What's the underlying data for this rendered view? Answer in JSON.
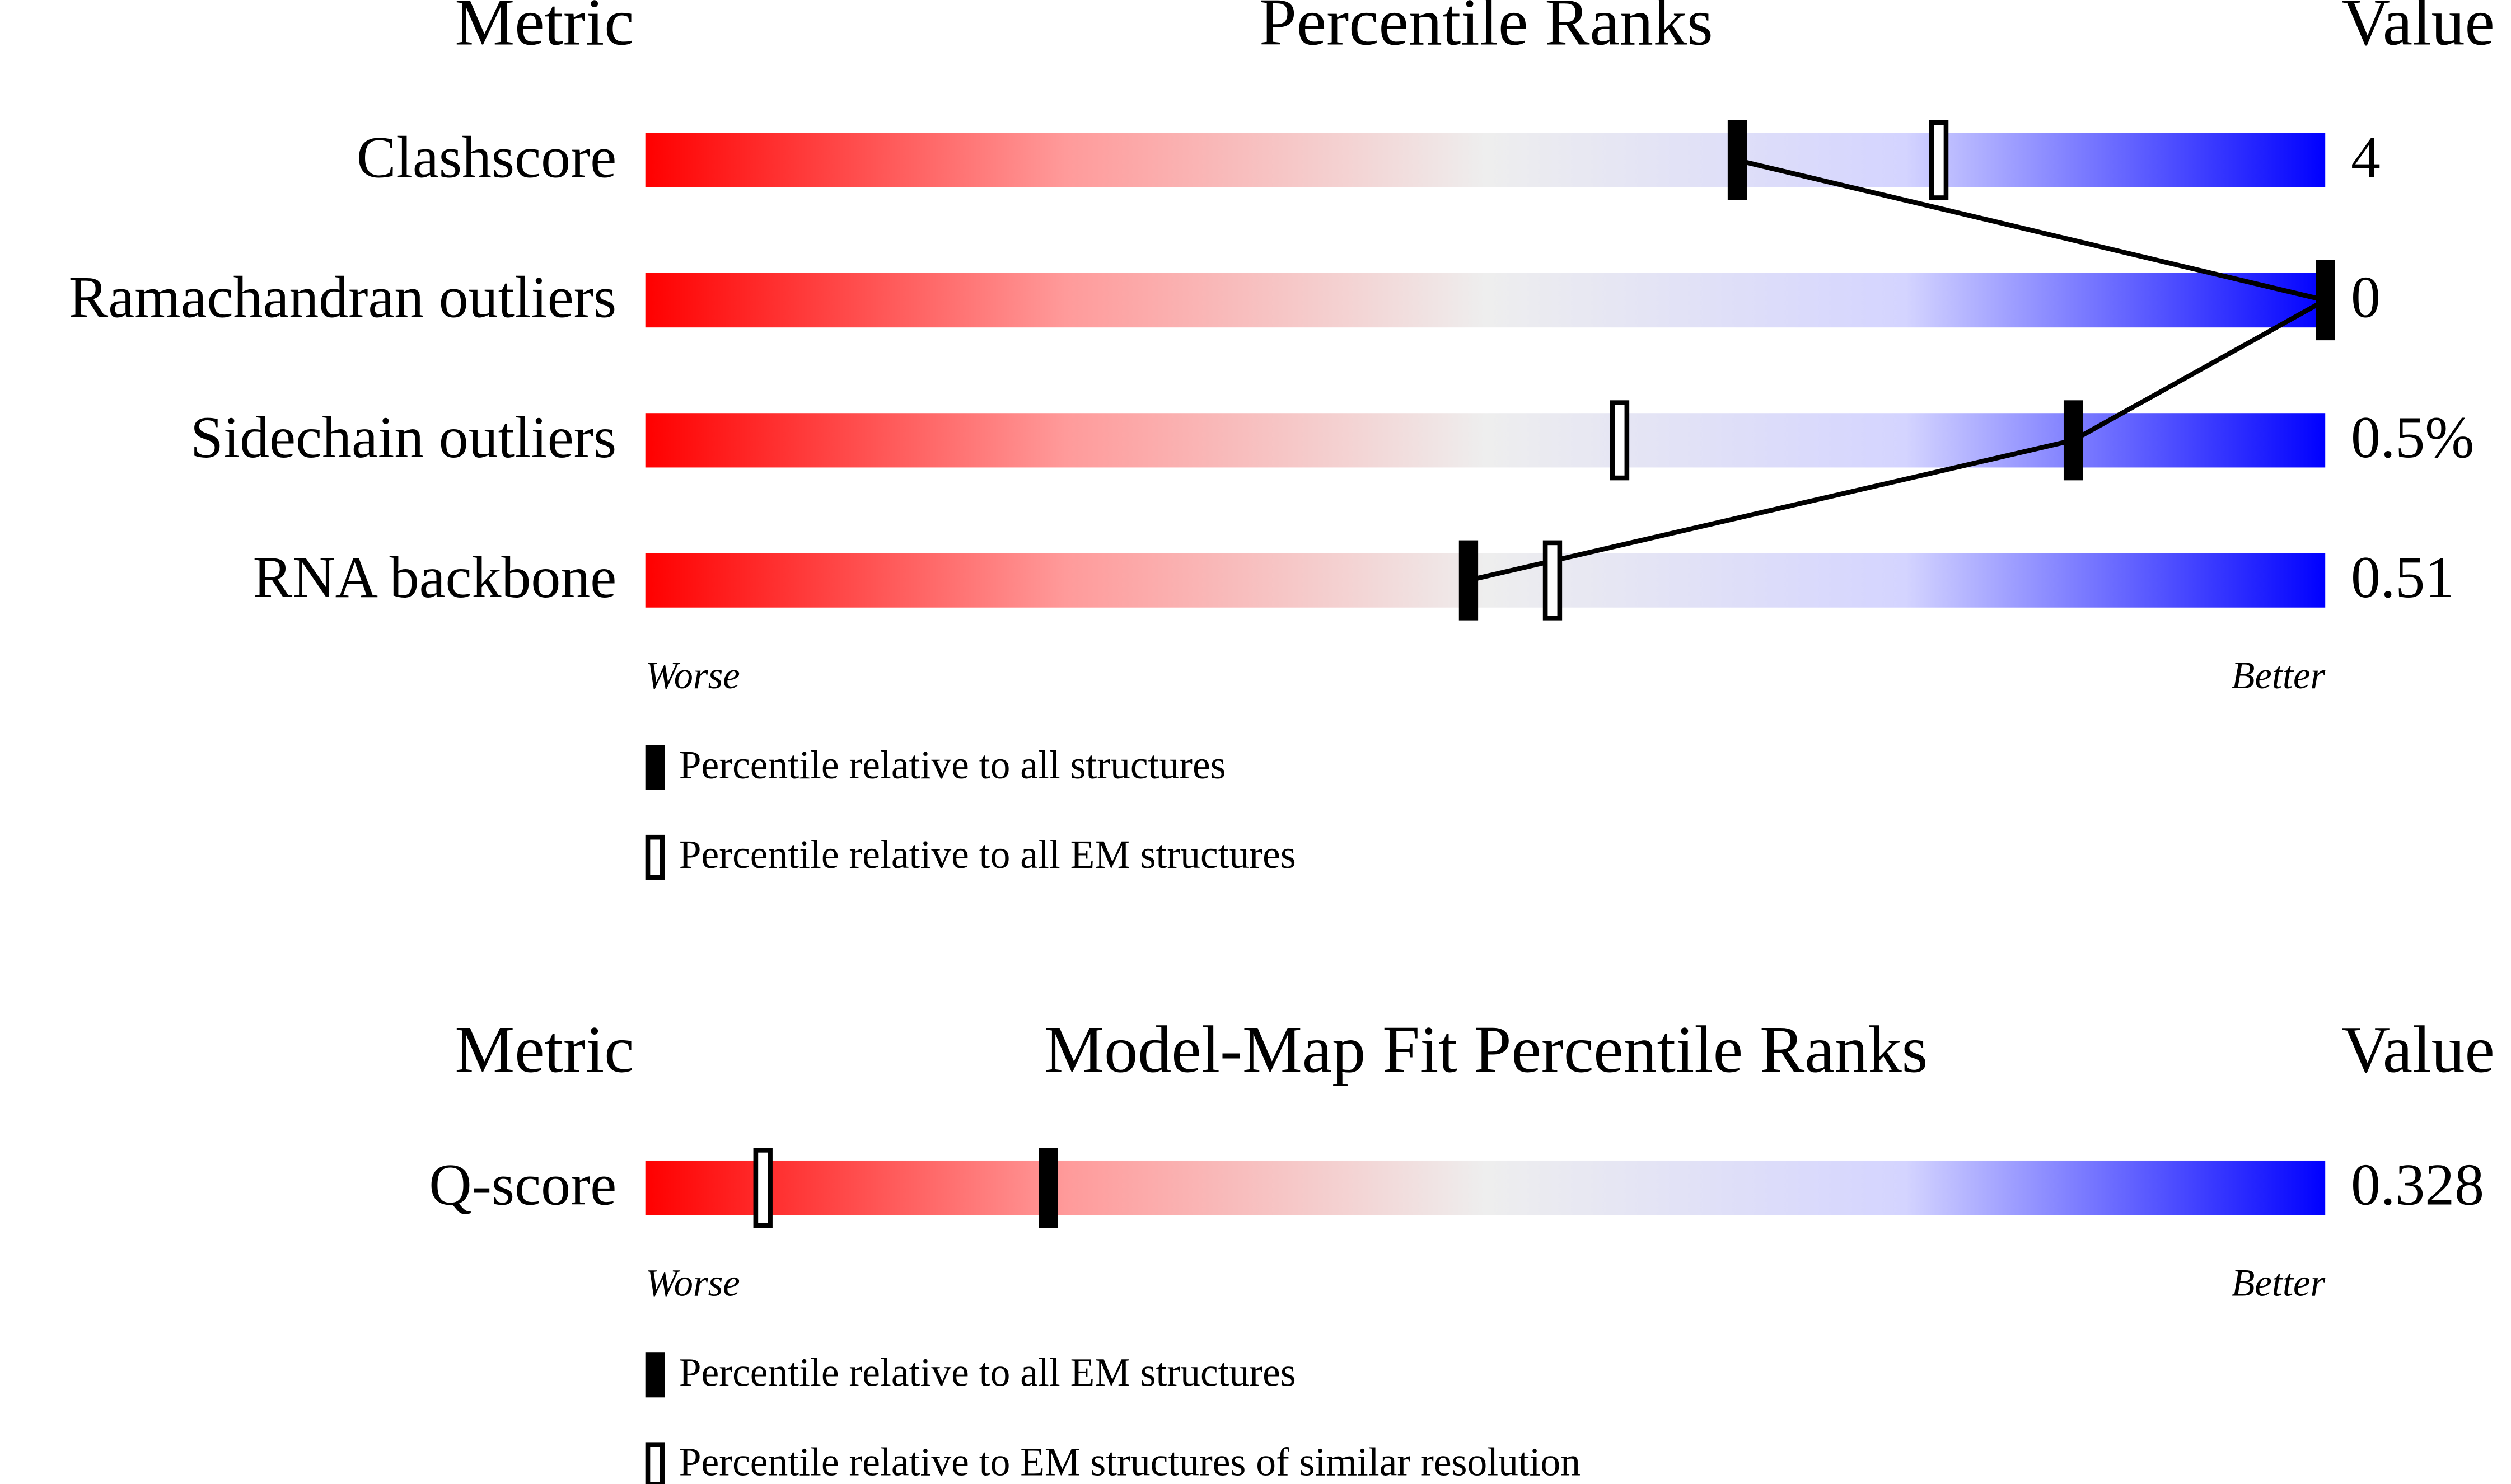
{
  "chart_data": [
    {
      "type": "percentile-slider",
      "header": {
        "metric": "Metric",
        "title": "Percentile Ranks",
        "value": "Value"
      },
      "categories": [
        "Clashscore",
        "Ramachandran outliers",
        "Sidechain outliers",
        "RNA backbone"
      ],
      "metric_values": [
        "4",
        "0",
        "0.5%",
        "0.51"
      ],
      "xlim": [
        0,
        100
      ],
      "axis_labels": {
        "low": "Worse",
        "high": "Better"
      },
      "series": [
        {
          "name": "Percentile relative to all structures",
          "style": "filled",
          "connected": true,
          "values": [
            65,
            100,
            85,
            49
          ]
        },
        {
          "name": "Percentile relative to all EM structures",
          "style": "hollow",
          "connected": false,
          "values": [
            77,
            100,
            58,
            54
          ]
        }
      ]
    },
    {
      "type": "percentile-slider",
      "header": {
        "metric": "Metric",
        "title": "Model-Map Fit Percentile Ranks",
        "value": "Value"
      },
      "categories": [
        "Q-score"
      ],
      "metric_values": [
        "0.328"
      ],
      "xlim": [
        0,
        100
      ],
      "axis_labels": {
        "low": "Worse",
        "high": "Better"
      },
      "series": [
        {
          "name": "Percentile relative to all EM structures",
          "style": "filled",
          "connected": false,
          "values": [
            24
          ]
        },
        {
          "name": "Percentile relative to EM structures of similar resolution",
          "style": "hollow",
          "connected": false,
          "values": [
            7
          ]
        }
      ]
    }
  ]
}
